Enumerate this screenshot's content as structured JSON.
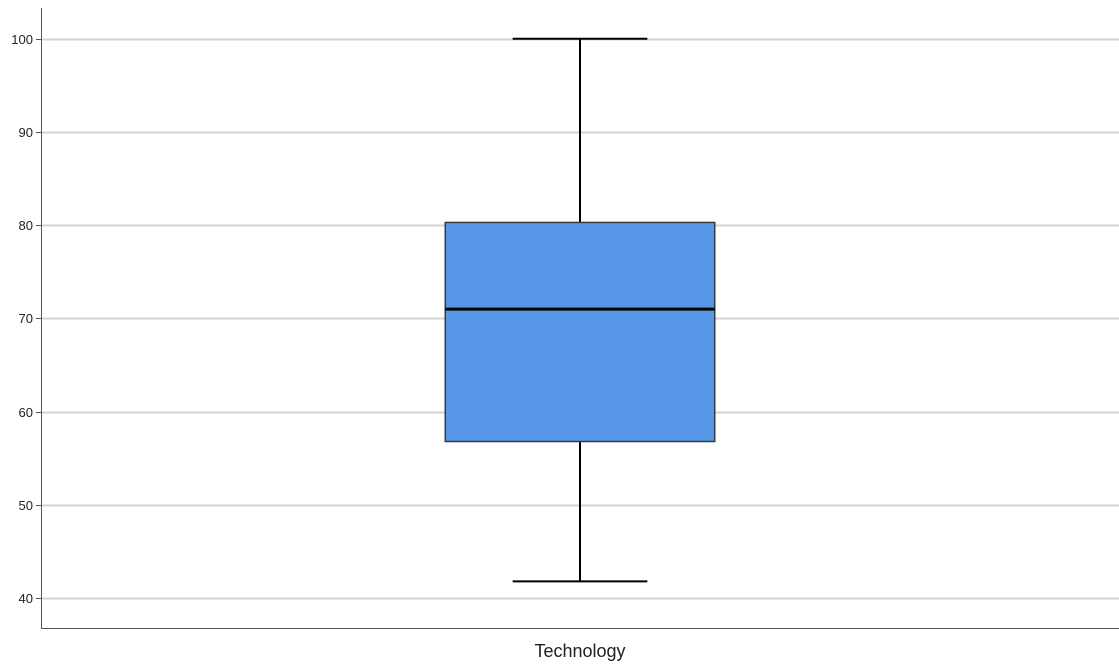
{
  "chart_data": {
    "type": "boxplot",
    "categories": [
      "Technology"
    ],
    "series": [
      {
        "category": "Technology",
        "min": 41.8,
        "q1": 56.8,
        "median": 71.0,
        "q3": 80.3,
        "max": 100
      }
    ],
    "yticks": [
      40,
      50,
      60,
      70,
      80,
      90,
      100
    ],
    "ylim": [
      36.8,
      103.3
    ],
    "grid": true,
    "title": "",
    "xlabel": "",
    "ylabel": "",
    "colors": {
      "box_fill": "#5596e6",
      "box_stroke": "#3b3b3b",
      "median": "#000000",
      "whisker": "#000000",
      "grid": "#d3d3d3",
      "axis": "#555555"
    }
  }
}
